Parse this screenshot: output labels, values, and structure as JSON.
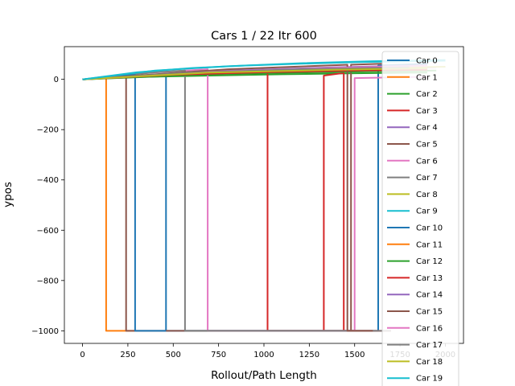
{
  "chart_data": {
    "type": "line",
    "title": "Cars 1 / 22 Itr 600",
    "xlabel": "Rollout/Path Length",
    "ylabel": "ypos",
    "xlim": [
      -100,
      2100
    ],
    "ylim": [
      -1050,
      130
    ],
    "xticks": [
      0,
      250,
      500,
      750,
      1000,
      1250,
      1500,
      1750,
      2000
    ],
    "yticks": [
      0,
      -200,
      -400,
      -600,
      -800,
      -1000
    ],
    "grid": false,
    "legend_position": "right",
    "series": [
      {
        "name": "Car 0",
        "color": "#1f77b4",
        "x": [
          0,
          250,
          460,
          460,
          1630,
          1630,
          1900
        ],
        "y": [
          0,
          13,
          18,
          -1000,
          -1000,
          55,
          62
        ]
      },
      {
        "name": "Car 1",
        "color": "#ff7f0e",
        "x": [
          0,
          130,
          130,
          290
        ],
        "y": [
          0,
          6,
          -1000,
          -1000
        ]
      },
      {
        "name": "Car 2",
        "color": "#2ca02c",
        "x": [
          0,
          300,
          700,
          1100,
          1500,
          1900
        ],
        "y": [
          0,
          9,
          15,
          20,
          24,
          27
        ]
      },
      {
        "name": "Car 3",
        "color": "#d62728",
        "x": [
          0,
          500,
          1020,
          1020,
          1440,
          1440,
          1330,
          1330,
          1700
        ],
        "y": [
          0,
          20,
          38,
          -1000,
          -1000,
          25,
          15,
          -1000,
          -1000
        ]
      },
      {
        "name": "Car 4",
        "color": "#9467bd",
        "x": [
          0,
          600,
          1200,
          1700,
          1950
        ],
        "y": [
          0,
          22,
          36,
          44,
          48
        ]
      },
      {
        "name": "Car 5",
        "color": "#8c564b",
        "x": [
          0,
          240,
          240,
          1480,
          1480,
          1650
        ],
        "y": [
          0,
          15,
          -1000,
          -1000,
          58,
          62
        ]
      },
      {
        "name": "Car 6",
        "color": "#e377c2",
        "x": [
          0,
          350,
          690,
          690,
          1500,
          1500,
          1900
        ],
        "y": [
          0,
          25,
          40,
          -1000,
          -1000,
          5,
          10
        ]
      },
      {
        "name": "Car 7",
        "color": "#7f7f7f",
        "x": [
          0,
          400,
          565,
          565,
          1700
        ],
        "y": [
          0,
          28,
          35,
          -1000,
          -1000
        ]
      },
      {
        "name": "Car 8",
        "color": "#bcbd22",
        "x": [
          0,
          600,
          1200,
          1800,
          2000
        ],
        "y": [
          0,
          28,
          40,
          48,
          50
        ]
      },
      {
        "name": "Car 9",
        "color": "#17becf",
        "x": [
          0,
          300,
          600,
          900,
          1200,
          1500,
          1800,
          2000
        ],
        "y": [
          0,
          28,
          45,
          55,
          62,
          68,
          72,
          74
        ]
      },
      {
        "name": "Car 10",
        "color": "#1f77b4",
        "x": [
          0,
          210,
          290,
          290,
          460
        ],
        "y": [
          0,
          14,
          17,
          -1000,
          -1000
        ]
      },
      {
        "name": "Car 11",
        "color": "#ff7f0e",
        "x": [
          0,
          700,
          1400,
          1900
        ],
        "y": [
          0,
          25,
          38,
          44
        ]
      },
      {
        "name": "Car 12",
        "color": "#2ca02c",
        "x": [
          0,
          800,
          1600,
          1950
        ],
        "y": [
          0,
          22,
          32,
          35
        ]
      },
      {
        "name": "Car 13",
        "color": "#d62728",
        "x": [
          0,
          500,
          1000,
          1500,
          1900
        ],
        "y": [
          0,
          18,
          28,
          35,
          38
        ]
      },
      {
        "name": "Car 14",
        "color": "#9467bd",
        "x": [
          0,
          700,
          1400,
          1900
        ],
        "y": [
          0,
          32,
          48,
          56
        ]
      },
      {
        "name": "Car 15",
        "color": "#8c564b",
        "x": [
          0,
          800,
          1460,
          1460,
          1600
        ],
        "y": [
          0,
          40,
          58,
          -1000,
          -1000
        ]
      },
      {
        "name": "Car 16",
        "color": "#e377c2",
        "x": [
          0,
          700,
          1400,
          1900
        ],
        "y": [
          0,
          30,
          46,
          54
        ]
      },
      {
        "name": "Car 17",
        "color": "#7f7f7f",
        "x": [
          0,
          600,
          1200,
          1800
        ],
        "y": [
          0,
          27,
          40,
          48
        ]
      },
      {
        "name": "Car 18",
        "color": "#bcbd22",
        "x": [
          0,
          700,
          1400,
          1900
        ],
        "y": [
          0,
          27,
          38,
          44
        ]
      },
      {
        "name": "Car 19",
        "color": "#17becf",
        "x": [
          0,
          400,
          800,
          1200,
          1600,
          2000
        ],
        "y": [
          0,
          35,
          52,
          64,
          72,
          77
        ]
      }
    ]
  }
}
